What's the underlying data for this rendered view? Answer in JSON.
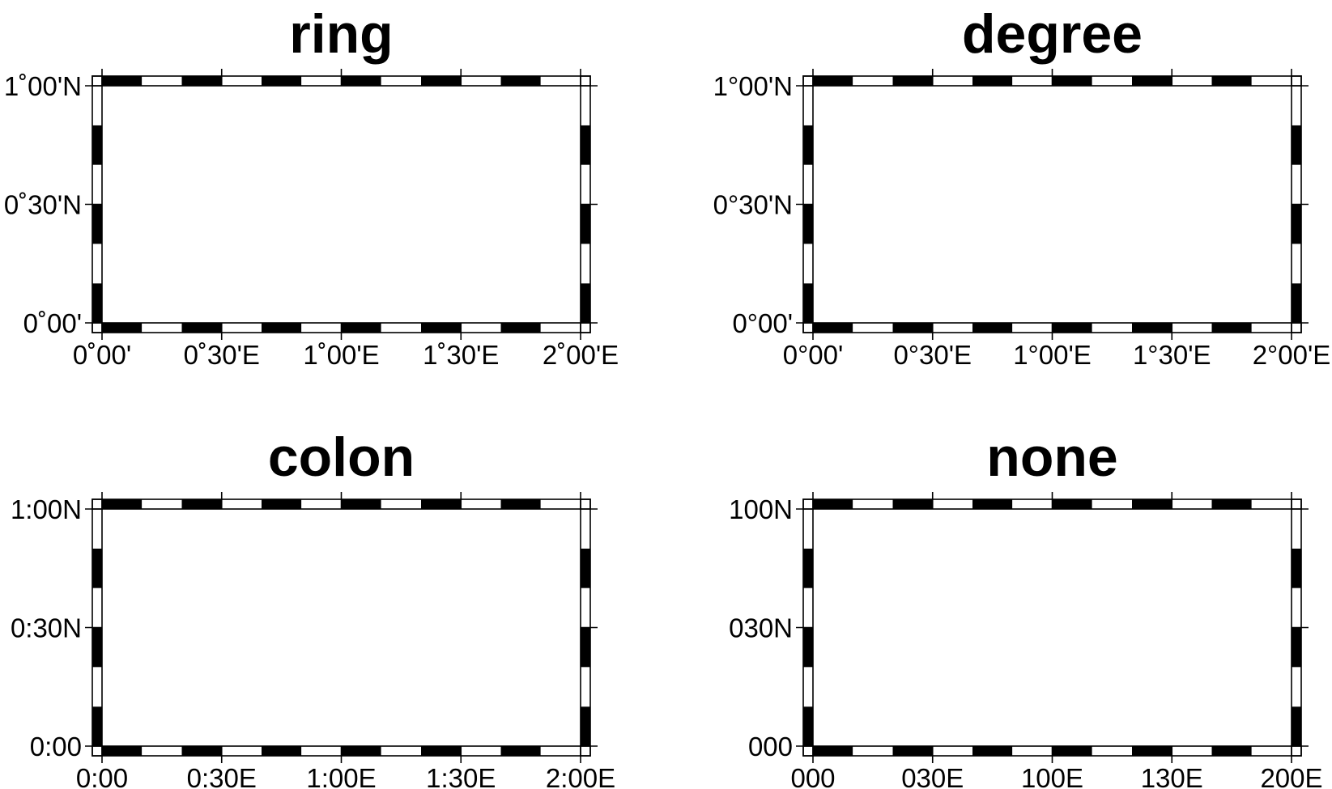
{
  "figure": {
    "frame_style": "fancy-checkered",
    "frame_colors": [
      "#000000",
      "#ffffff"
    ],
    "x_range_deg": [
      0,
      2
    ],
    "y_range_deg": [
      0,
      1
    ],
    "segments_per_degree_x": 6,
    "segments_per_degree_y": 6
  },
  "panels": [
    {
      "title": "ring",
      "x_labels": [
        "0˚00'",
        "0˚30'E",
        "1˚00'E",
        "1˚30'E",
        "2˚00'E"
      ],
      "y_labels": [
        "0˚00'",
        "0˚30'N",
        "1˚00'N"
      ]
    },
    {
      "title": "degree",
      "x_labels": [
        "0°00'",
        "0°30'E",
        "1°00'E",
        "1°30'E",
        "2°00'E"
      ],
      "y_labels": [
        "0°00'",
        "0°30'N",
        "1°00'N"
      ]
    },
    {
      "title": "colon",
      "x_labels": [
        "0:00",
        "0:30E",
        "1:00E",
        "1:30E",
        "2:00E"
      ],
      "y_labels": [
        "0:00",
        "0:30N",
        "1:00N"
      ]
    },
    {
      "title": "none",
      "x_labels": [
        "000",
        "030E",
        "100E",
        "130E",
        "200E"
      ],
      "y_labels": [
        "000",
        "030N",
        "100N"
      ]
    }
  ]
}
